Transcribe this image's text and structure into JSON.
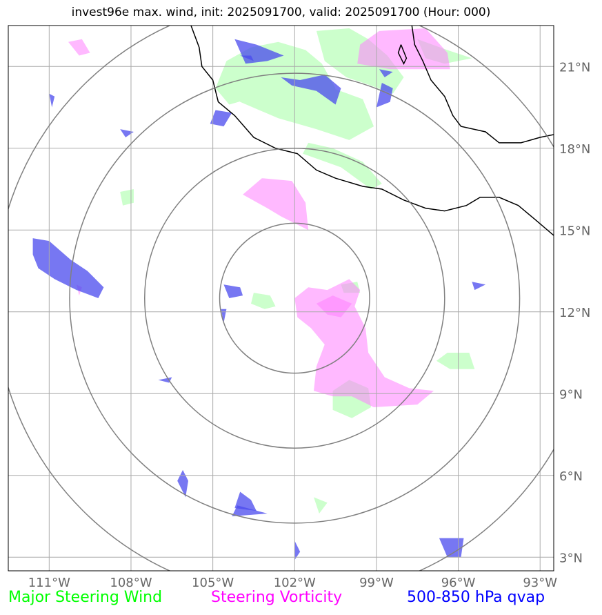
{
  "title": "invest96e max. wind, init: 2025091700, valid: 2025091700 (Hour: 000)",
  "legend": {
    "wind": {
      "label": "Major Steering Wind",
      "color": "#00ff00"
    },
    "vorticity": {
      "label": "Steering Vorticity",
      "color": "#ff00ff"
    },
    "qvap": {
      "label": "500-850 hPa qvap",
      "color": "#0000ff"
    }
  },
  "colors": {
    "wind_fill": "#ccffcc",
    "vort_fill": "#ff80ff",
    "qvap_fill": "#4a4aee",
    "grid": "#aaaaaa",
    "ring": "#808080",
    "coast": "#000000",
    "tick_label": "#666666"
  },
  "chart_data": {
    "type": "map",
    "projection": "PlateCarree",
    "lon_range": [
      -112.5,
      -92.5
    ],
    "lat_range": [
      2.5,
      22.5
    ],
    "center": {
      "lon": -102.0,
      "lat": 12.5
    },
    "range_rings_deg": [
      2.75,
      5.5,
      8.25,
      11.0
    ],
    "lon_ticks": [
      {
        "value": -111,
        "label": "111°W"
      },
      {
        "value": -108,
        "label": "108°W"
      },
      {
        "value": -105,
        "label": "105°W"
      },
      {
        "value": -102,
        "label": "102°W"
      },
      {
        "value": -99,
        "label": "99°W"
      },
      {
        "value": -96,
        "label": "96°W"
      },
      {
        "value": -93,
        "label": "93°W"
      }
    ],
    "lat_ticks": [
      {
        "value": 3,
        "label": "3°N"
      },
      {
        "value": 6,
        "label": "6°N"
      },
      {
        "value": 9,
        "label": "9°N"
      },
      {
        "value": 12,
        "label": "12°N"
      },
      {
        "value": 15,
        "label": "15°N"
      },
      {
        "value": 18,
        "label": "18°N"
      },
      {
        "value": 21,
        "label": "21°N"
      }
    ],
    "coastline": [
      [
        [
          -97.7,
          22.5
        ],
        [
          -97.6,
          21.8
        ],
        [
          -97.3,
          21.2
        ],
        [
          -97.0,
          20.5
        ],
        [
          -96.5,
          19.9
        ],
        [
          -96.2,
          19.2
        ],
        [
          -95.9,
          18.8
        ],
        [
          -95.0,
          18.6
        ],
        [
          -94.5,
          18.2
        ],
        [
          -93.7,
          18.2
        ],
        [
          -93.0,
          18.4
        ],
        [
          -92.5,
          18.5
        ]
      ],
      [
        [
          -105.8,
          22.5
        ],
        [
          -105.5,
          21.7
        ],
        [
          -105.4,
          21.0
        ],
        [
          -105.0,
          20.5
        ],
        [
          -104.8,
          19.7
        ],
        [
          -104.2,
          19.2
        ],
        [
          -103.5,
          18.4
        ],
        [
          -102.7,
          18.0
        ],
        [
          -101.9,
          17.8
        ],
        [
          -101.2,
          17.2
        ],
        [
          -100.5,
          16.9
        ],
        [
          -99.5,
          16.6
        ],
        [
          -98.8,
          16.5
        ],
        [
          -98.0,
          16.1
        ],
        [
          -97.2,
          15.8
        ],
        [
          -96.5,
          15.7
        ],
        [
          -95.7,
          15.9
        ],
        [
          -95.2,
          16.2
        ],
        [
          -94.5,
          16.2
        ],
        [
          -93.8,
          15.9
        ],
        [
          -93.2,
          15.4
        ],
        [
          -92.5,
          14.8
        ]
      ],
      [
        [
          -98.1,
          21.8
        ],
        [
          -97.9,
          21.3
        ],
        [
          -98.0,
          21.1
        ],
        [
          -98.2,
          21.5
        ],
        [
          -98.1,
          21.8
        ]
      ]
    ],
    "wind_regions": [
      [
        [
          -102.6,
          21.9
        ],
        [
          -101.6,
          21.6
        ],
        [
          -101.0,
          21.1
        ],
        [
          -100.5,
          20.2
        ],
        [
          -100.9,
          19.6
        ],
        [
          -101.6,
          19.8
        ],
        [
          -103.0,
          20.0
        ],
        [
          -104.4,
          19.6
        ],
        [
          -104.9,
          20.2
        ],
        [
          -104.5,
          21.2
        ],
        [
          -103.6,
          21.7
        ]
      ],
      [
        [
          -101.7,
          17.8
        ],
        [
          -100.3,
          17.3
        ],
        [
          -99.2,
          16.5
        ],
        [
          -98.8,
          16.7
        ],
        [
          -99.5,
          17.5
        ],
        [
          -100.6,
          18.0
        ],
        [
          -101.5,
          18.2
        ]
      ],
      [
        [
          -104.5,
          20.8
        ],
        [
          -102.0,
          20.5
        ],
        [
          -100.6,
          20.2
        ],
        [
          -99.5,
          19.8
        ],
        [
          -99.1,
          18.8
        ],
        [
          -100.0,
          18.3
        ],
        [
          -101.2,
          18.7
        ],
        [
          -102.6,
          19.1
        ],
        [
          -104.0,
          19.7
        ]
      ],
      [
        [
          -101.2,
          22.3
        ],
        [
          -100.0,
          22.4
        ],
        [
          -99.3,
          22.0
        ],
        [
          -98.6,
          21.4
        ],
        [
          -98.0,
          20.6
        ],
        [
          -98.4,
          20.0
        ],
        [
          -99.2,
          20.3
        ],
        [
          -100.1,
          20.6
        ],
        [
          -100.9,
          21.2
        ]
      ],
      [
        [
          -97.5,
          22.0
        ],
        [
          -96.4,
          21.6
        ],
        [
          -95.5,
          21.3
        ],
        [
          -96.5,
          21.1
        ],
        [
          -97.2,
          21.3
        ]
      ],
      [
        [
          -103.5,
          12.7
        ],
        [
          -102.9,
          12.6
        ],
        [
          -102.7,
          12.2
        ],
        [
          -103.1,
          12.1
        ],
        [
          -103.6,
          12.3
        ]
      ],
      [
        [
          -100.6,
          9.1
        ],
        [
          -100.0,
          9.5
        ],
        [
          -99.3,
          9.2
        ],
        [
          -99.2,
          8.5
        ],
        [
          -99.9,
          8.1
        ],
        [
          -100.6,
          8.4
        ]
      ],
      [
        [
          -96.4,
          10.5
        ],
        [
          -95.6,
          10.5
        ],
        [
          -95.4,
          9.9
        ],
        [
          -96.3,
          9.9
        ],
        [
          -96.8,
          10.2
        ]
      ],
      [
        [
          -100.3,
          13.0
        ],
        [
          -99.7,
          13.1
        ],
        [
          -99.6,
          12.7
        ],
        [
          -100.2,
          12.7
        ]
      ],
      [
        [
          -108.4,
          16.4
        ],
        [
          -107.9,
          16.5
        ],
        [
          -107.9,
          16.0
        ],
        [
          -108.3,
          15.9
        ]
      ],
      [
        [
          -101.3,
          5.2
        ],
        [
          -100.8,
          5.0
        ],
        [
          -101.1,
          4.6
        ]
      ]
    ],
    "vort_regions": [
      [
        [
          -102.0,
          12.5
        ],
        [
          -101.5,
          12.9
        ],
        [
          -100.8,
          12.8
        ],
        [
          -100.0,
          13.2
        ],
        [
          -99.6,
          12.8
        ],
        [
          -99.8,
          12.2
        ],
        [
          -99.4,
          11.4
        ],
        [
          -99.3,
          10.5
        ],
        [
          -98.7,
          9.6
        ],
        [
          -97.8,
          9.2
        ],
        [
          -96.9,
          9.1
        ],
        [
          -97.5,
          8.6
        ],
        [
          -99.1,
          8.5
        ],
        [
          -99.9,
          8.9
        ],
        [
          -100.6,
          8.9
        ],
        [
          -101.3,
          9.1
        ],
        [
          -101.2,
          10.0
        ],
        [
          -100.9,
          10.8
        ],
        [
          -101.4,
          11.4
        ],
        [
          -101.9,
          11.8
        ]
      ],
      [
        [
          -101.2,
          12.3
        ],
        [
          -100.6,
          12.6
        ],
        [
          -99.9,
          12.3
        ],
        [
          -100.3,
          11.8
        ],
        [
          -100.8,
          11.9
        ]
      ],
      [
        [
          -103.2,
          16.9
        ],
        [
          -102.1,
          16.8
        ],
        [
          -101.6,
          16.0
        ],
        [
          -101.5,
          15.0
        ],
        [
          -101.9,
          15.2
        ],
        [
          -102.5,
          15.5
        ],
        [
          -103.0,
          15.8
        ],
        [
          -103.9,
          16.3
        ]
      ],
      [
        [
          -98.9,
          22.3
        ],
        [
          -97.2,
          22.4
        ],
        [
          -96.4,
          21.5
        ],
        [
          -96.3,
          20.9
        ],
        [
          -98.5,
          20.9
        ],
        [
          -99.7,
          21.1
        ],
        [
          -99.6,
          21.8
        ]
      ],
      [
        [
          -110.3,
          21.9
        ],
        [
          -109.8,
          22.0
        ],
        [
          -109.5,
          21.5
        ],
        [
          -109.9,
          21.4
        ]
      ],
      [
        [
          -110.0,
          13.0
        ],
        [
          -109.9,
          12.6
        ],
        [
          -109.8,
          12.9
        ]
      ]
    ],
    "qvap_regions": [
      [
        [
          -111.6,
          14.7
        ],
        [
          -111.0,
          14.6
        ],
        [
          -110.2,
          13.9
        ],
        [
          -109.6,
          13.5
        ],
        [
          -109.0,
          12.9
        ],
        [
          -109.2,
          12.5
        ],
        [
          -110.0,
          12.8
        ],
        [
          -110.8,
          13.2
        ],
        [
          -111.4,
          13.6
        ],
        [
          -111.6,
          14.1
        ]
      ],
      [
        [
          -104.6,
          13.0
        ],
        [
          -104.0,
          12.9
        ],
        [
          -103.9,
          12.6
        ],
        [
          -104.4,
          12.5
        ]
      ],
      [
        [
          -102.5,
          20.6
        ],
        [
          -101.8,
          20.5
        ],
        [
          -100.9,
          20.7
        ],
        [
          -100.3,
          20.2
        ],
        [
          -100.5,
          19.6
        ],
        [
          -101.2,
          20.1
        ],
        [
          -102.1,
          20.3
        ]
      ],
      [
        [
          -104.2,
          22.0
        ],
        [
          -103.4,
          21.8
        ],
        [
          -102.4,
          21.4
        ],
        [
          -103.0,
          21.2
        ],
        [
          -103.8,
          21.1
        ]
      ],
      [
        [
          -98.8,
          20.4
        ],
        [
          -98.4,
          20.2
        ],
        [
          -98.5,
          19.7
        ],
        [
          -99.0,
          19.5
        ]
      ],
      [
        [
          -104.9,
          19.4
        ],
        [
          -104.3,
          19.3
        ],
        [
          -104.6,
          18.8
        ],
        [
          -105.1,
          18.9
        ]
      ],
      [
        [
          -104.0,
          21.4
        ],
        [
          -103.6,
          21.4
        ],
        [
          -103.5,
          21.2
        ]
      ],
      [
        [
          -106.3,
          5.8
        ],
        [
          -106.1,
          6.2
        ],
        [
          -105.9,
          5.8
        ],
        [
          -106.0,
          5.2
        ]
      ],
      [
        [
          -104.2,
          4.8
        ],
        [
          -103.4,
          4.7
        ],
        [
          -103.6,
          5.1
        ],
        [
          -104.0,
          5.4
        ]
      ],
      [
        [
          -96.7,
          3.7
        ],
        [
          -95.8,
          3.7
        ],
        [
          -95.9,
          3.0
        ],
        [
          -96.4,
          3.0
        ]
      ],
      [
        [
          -104.1,
          4.9
        ],
        [
          -104.3,
          4.5
        ],
        [
          -103.0,
          4.6
        ]
      ],
      [
        [
          -107.0,
          9.5
        ],
        [
          -106.6,
          9.4
        ],
        [
          -106.5,
          9.6
        ]
      ],
      [
        [
          -102.0,
          3.6
        ],
        [
          -102.0,
          2.9
        ],
        [
          -101.8,
          3.2
        ]
      ],
      [
        [
          -95.5,
          13.1
        ],
        [
          -95.0,
          13.0
        ],
        [
          -95.4,
          12.8
        ]
      ],
      [
        [
          -104.7,
          12.1
        ],
        [
          -104.5,
          12.1
        ],
        [
          -104.6,
          11.6
        ]
      ],
      [
        [
          -98.9,
          20.9
        ],
        [
          -98.4,
          20.8
        ],
        [
          -98.7,
          20.6
        ]
      ],
      [
        [
          -108.4,
          18.7
        ],
        [
          -107.9,
          18.6
        ],
        [
          -108.2,
          18.4
        ]
      ],
      [
        [
          -111.0,
          20.0
        ],
        [
          -110.9,
          19.5
        ],
        [
          -110.8,
          19.9
        ]
      ]
    ],
    "legend_position": "bottom"
  }
}
